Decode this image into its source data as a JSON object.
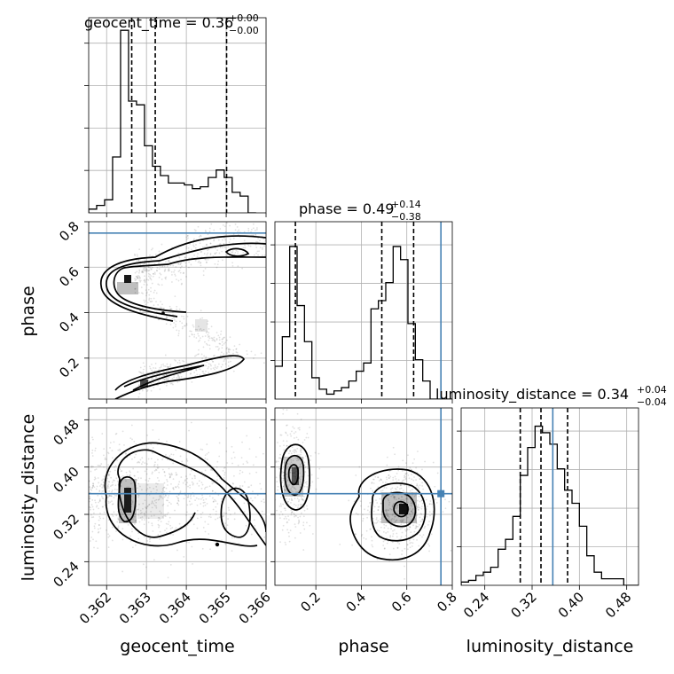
{
  "chart_data": {
    "type": "corner",
    "parameters": [
      "geocent_time",
      "phase",
      "luminosity_distance"
    ],
    "titles": [
      {
        "name": "geocent_time",
        "median": "0.36",
        "plus": "+0.00",
        "minus": "−0.00"
      },
      {
        "name": "phase",
        "median": "0.49",
        "plus": "+0.14",
        "minus": "−0.38"
      },
      {
        "name": "luminosity_distance",
        "median": "0.34",
        "plus": "+0.04",
        "minus": "−0.04"
      }
    ],
    "axis_ranges": {
      "geocent_time": [
        0.36155,
        0.366
      ],
      "phase": [
        0.02,
        0.8
      ],
      "luminosity_distance": [
        0.2,
        0.5
      ]
    },
    "ticks": {
      "geocent_time": [
        "0.362",
        "0.363",
        "0.364",
        "0.365",
        "0.366"
      ],
      "phase": [
        "0.2",
        "0.4",
        "0.6",
        "0.8"
      ],
      "luminosity_distance": [
        "0.24",
        "0.32",
        "0.40",
        "0.48"
      ]
    },
    "tick_values": {
      "geocent_time": [
        0.362,
        0.363,
        0.364,
        0.365,
        0.366
      ],
      "phase": [
        0.2,
        0.4,
        0.6,
        0.8
      ],
      "luminosity_distance": [
        0.24,
        0.32,
        0.4,
        0.48
      ]
    },
    "truths": {
      "geocent_time": null,
      "phase": 0.75,
      "luminosity_distance": 0.355
    },
    "quantiles": {
      "geocent_time": [
        0.36263,
        0.36322,
        0.36501
      ],
      "phase": [
        0.11,
        0.49,
        0.63
      ],
      "luminosity_distance": [
        0.3,
        0.335,
        0.38
      ]
    },
    "histograms": {
      "geocent_time": {
        "edges_start": 0.36155,
        "bin_width": 0.0002,
        "counts": [
          0.02,
          0.04,
          0.07,
          0.3,
          0.98,
          0.6,
          0.58,
          0.36,
          0.25,
          0.2,
          0.16,
          0.16,
          0.15,
          0.13,
          0.14,
          0.19,
          0.23,
          0.19,
          0.11,
          0.09,
          0.0
        ]
      },
      "phase": {
        "edges_start": 0.02,
        "bin_width": 0.0325,
        "counts": [
          0.2,
          0.38,
          0.93,
          0.57,
          0.35,
          0.13,
          0.06,
          0.03,
          0.05,
          0.07,
          0.11,
          0.17,
          0.22,
          0.55,
          0.6,
          0.71,
          0.93,
          0.85,
          0.46,
          0.24,
          0.11,
          0.0,
          0.0,
          0.0
        ]
      },
      "luminosity_distance": {
        "edges_start": 0.2,
        "bin_width": 0.0125,
        "counts": [
          0.02,
          0.03,
          0.06,
          0.08,
          0.11,
          0.22,
          0.28,
          0.42,
          0.67,
          0.84,
          0.97,
          0.93,
          0.86,
          0.71,
          0.58,
          0.5,
          0.36,
          0.18,
          0.08,
          0.04,
          0.04,
          0.04,
          0.0,
          0.0
        ]
      }
    }
  },
  "colors": {
    "truth": "#4682b4",
    "contour": "#000000",
    "grid": "#b0b0b0"
  }
}
